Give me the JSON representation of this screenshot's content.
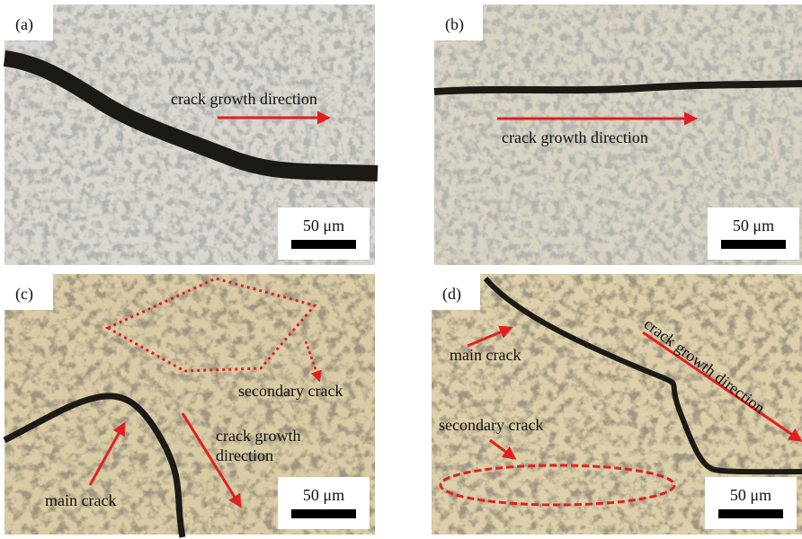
{
  "panels": [
    {
      "label": "(a)",
      "annotations": [
        "crack growth direction"
      ],
      "scale_bar": "50 μm"
    },
    {
      "label": "(b)",
      "annotations": [
        "crack growth direction"
      ],
      "scale_bar": "50 μm"
    },
    {
      "label": "(c)",
      "annotations": [
        "secondary crack",
        "crack growth",
        "direction",
        "main crack"
      ],
      "scale_bar": "50 μm"
    },
    {
      "label": "(d)",
      "annotations": [
        "main crack",
        "crack growth direction",
        "secondary crack"
      ],
      "scale_bar": "50 μm"
    }
  ]
}
